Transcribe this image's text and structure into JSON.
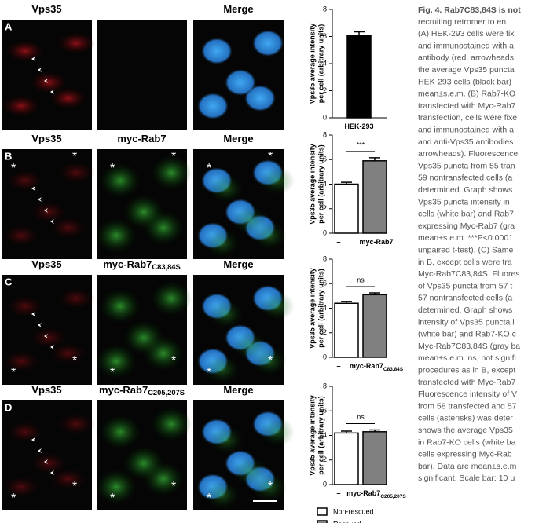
{
  "asterisk": "*",
  "panels": [
    {
      "letter": "A",
      "titles": {
        "left": {
          "text": "Vps35"
        },
        "right": {
          "text": "Merge"
        }
      },
      "chart": {
        "type": "bar",
        "ylabel": [
          "Vps35 average intensity",
          "per cell (arbitrary units)"
        ],
        "ylim": [
          0,
          8
        ],
        "yticks": [
          0,
          2,
          4,
          6,
          8
        ],
        "categories": [
          {
            "text": "HEK-293"
          }
        ],
        "values": [
          6.1
        ],
        "errors": [
          0.25
        ],
        "colors": [
          "#000000"
        ]
      }
    },
    {
      "letter": "B",
      "titles": {
        "left": {
          "text": "Vps35"
        },
        "middle": {
          "text": "myc-Rab7"
        },
        "right": {
          "text": "Merge"
        }
      },
      "chart": {
        "type": "bar",
        "ylabel": [
          "Vps35 average intensity",
          "per cell (arbitrary units)"
        ],
        "ylim": [
          0,
          8
        ],
        "yticks": [
          0,
          2,
          4,
          6,
          8
        ],
        "categories": [
          {
            "text": "–"
          },
          {
            "text": "myc-Rab7"
          }
        ],
        "values": [
          4.0,
          5.9
        ],
        "errors": [
          0.15,
          0.25
        ],
        "colors": [
          "#ffffff",
          "#808080"
        ],
        "significance": "***"
      }
    },
    {
      "letter": "C",
      "titles": {
        "left": {
          "text": "Vps35"
        },
        "middle": {
          "text": "myc-Rab7",
          "sub": "C83,84S"
        },
        "right": {
          "text": "Merge"
        }
      },
      "chart": {
        "type": "bar",
        "ylabel": [
          "Vps35 average intensity",
          "per cell (arbitrary units)"
        ],
        "ylim": [
          0,
          8
        ],
        "yticks": [
          0,
          2,
          4,
          6,
          8
        ],
        "categories": [
          {
            "text": "–"
          },
          {
            "text": "myc-Rab7",
            "sub": "C83,84S"
          }
        ],
        "values": [
          4.4,
          5.1
        ],
        "errors": [
          0.15,
          0.15
        ],
        "colors": [
          "#ffffff",
          "#808080"
        ],
        "significance": "ns"
      }
    },
    {
      "letter": "D",
      "titles": {
        "left": {
          "text": "Vps35"
        },
        "middle": {
          "text": "myc-Rab7",
          "sub": "C205,207S"
        },
        "right": {
          "text": "Merge"
        }
      },
      "chart": {
        "type": "bar",
        "ylabel": [
          "Vps35 average intensity",
          "per cell (arbitrary units)"
        ],
        "ylim": [
          0,
          8
        ],
        "yticks": [
          0,
          2,
          4,
          6,
          8
        ],
        "categories": [
          {
            "text": "–"
          },
          {
            "text": "myc-Rab7",
            "sub": "C205,207S"
          }
        ],
        "values": [
          4.2,
          4.3
        ],
        "errors": [
          0.15,
          0.15
        ],
        "colors": [
          "#ffffff",
          "#808080"
        ],
        "significance": "ns"
      }
    }
  ],
  "legend": [
    {
      "name": "Non-rescued",
      "color": "#ffffff"
    },
    {
      "name": "Rescued",
      "color": "#808080"
    }
  ],
  "caption": {
    "title": "Fig. 4. Rab7C83,84S is not",
    "lines": [
      "recruiting retromer to en",
      "(A) HEK-293 cells were fix",
      "and immunostained with a",
      "antibody (red, arrowheads",
      "the average Vps35 puncta",
      "HEK-293 cells (black bar)",
      "mean±s.e.m. (B) Rab7-KO",
      "transfected with Myc-Rab7",
      "transfection, cells were fixe",
      "and immunostained with a",
      "and anti-Vps35 antibodies",
      "arrowheads). Fluorescence",
      "Vps35 puncta from 55 tran",
      "59 nontransfected cells (a",
      "determined. Graph shows",
      "Vps35 puncta intensity in",
      "cells (white bar) and Rab7",
      "expressing Myc-Rab7 (gra",
      "mean±s.e.m. ***P<0.0001",
      "unpaired t-test). (C) Same",
      "in B, except cells were tra",
      "Myc-Rab7C83,84S. Fluores",
      "of Vps35 puncta from 57 t",
      "57 nontransfected cells (a",
      "determined. Graph shows",
      "intensity of Vps35 puncta i",
      "(white bar) and Rab7-KO c",
      "Myc-Rab7C83,84S (gray ba",
      "mean±s.e.m. ns, not signifi",
      "procedures as in B, except",
      "transfected with Myc-Rab7",
      "Fluorescence intensity of V",
      "from 58 transfected and 57",
      "cells (asterisks) was deter",
      "shows the average Vps35",
      "in Rab7-KO cells (white ba",
      "cells expressing Myc-Rab",
      "bar). Data are mean±s.e.m",
      "significant. Scale bar: 10 μ"
    ]
  }
}
